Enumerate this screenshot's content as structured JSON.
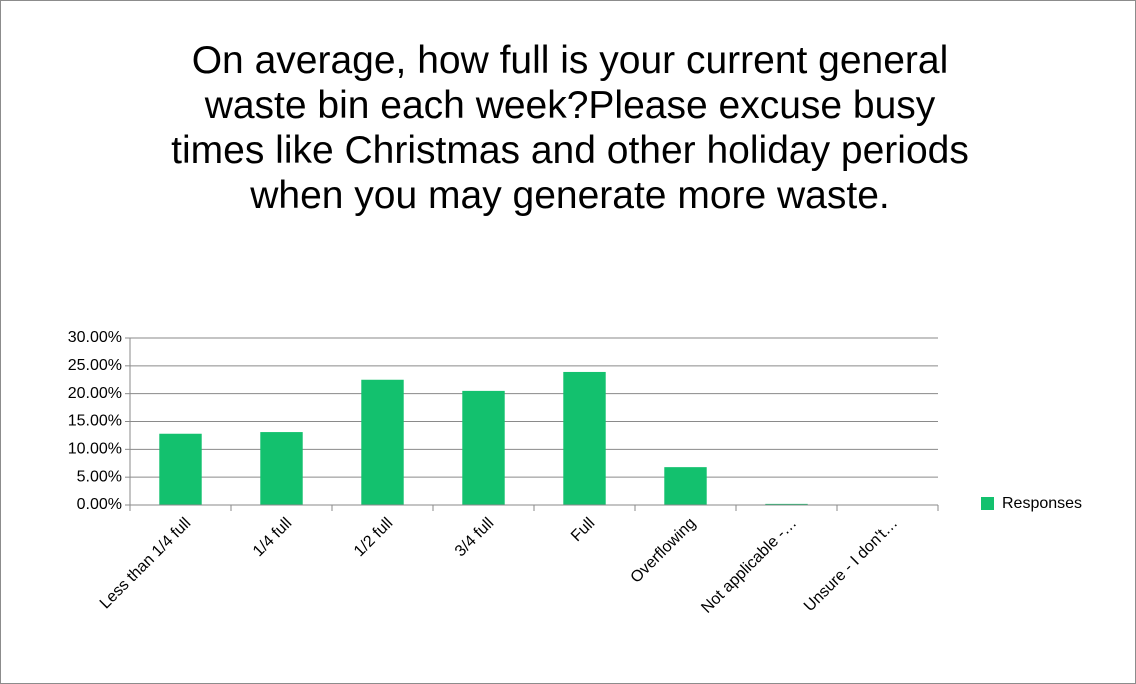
{
  "chart_data": {
    "type": "bar",
    "title": "On average, how full is your current general waste bin each week?Please excuse busy times like Christmas and other holiday periods when you may generate more waste.",
    "categories": [
      "Less than 1/4 full",
      "1/4 full",
      "1/2 full",
      "3/4 full",
      "Full",
      "Overflowing",
      "Not applicable -…",
      "Unsure - I don't…"
    ],
    "series": [
      {
        "name": "Responses",
        "color": "#13c16e",
        "values": [
          12.8,
          13.1,
          22.5,
          20.5,
          23.9,
          6.8,
          0.2,
          0
        ]
      }
    ],
    "ylim": [
      0,
      30
    ],
    "yticks": [
      {
        "value": 0,
        "label": "0.00%"
      },
      {
        "value": 5,
        "label": "5.00%"
      },
      {
        "value": 10,
        "label": "10.00%"
      },
      {
        "value": 15,
        "label": "15.00%"
      },
      {
        "value": 20,
        "label": "20.00%"
      },
      {
        "value": 25,
        "label": "25.00%"
      },
      {
        "value": 30,
        "label": "30.00%"
      }
    ],
    "grid": true,
    "legend": "right"
  }
}
